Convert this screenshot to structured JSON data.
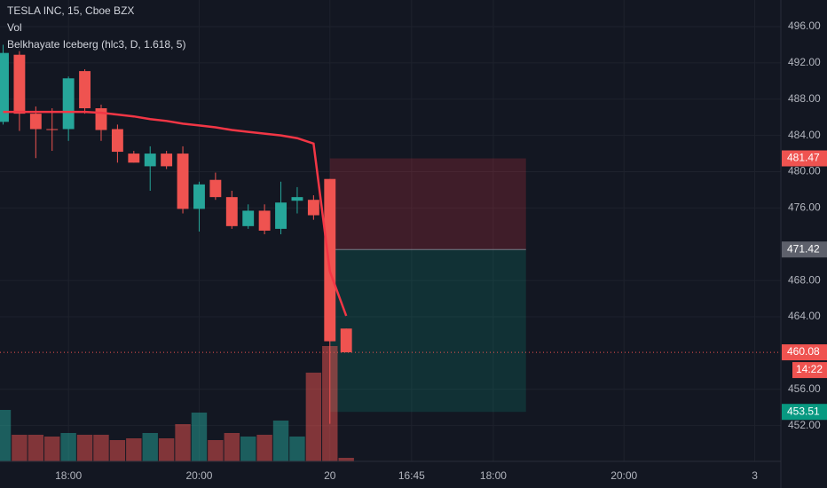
{
  "chart_data": {
    "type": "candlestick",
    "title": "TESLA INC, 15, Cboe BZX",
    "volume_name": "Vol",
    "up_color": "#26a69a",
    "down_color": "#ef5350",
    "open": [
      485.5,
      492.9,
      486.4,
      484.7,
      484.7,
      491.1,
      487.0,
      484.7,
      482.0,
      480.6,
      482.0,
      482.0,
      475.9,
      479.1,
      477.2,
      474.0,
      475.7,
      473.7,
      476.8,
      476.9,
      479.2,
      462.7
    ],
    "high": [
      494.0,
      493.3,
      487.2,
      487.0,
      490.5,
      491.3,
      487.4,
      485.2,
      482.3,
      482.8,
      482.3,
      482.8,
      478.9,
      479.9,
      477.9,
      476.4,
      476.4,
      478.9,
      478.3,
      477.4,
      479.2,
      462.7
    ],
    "low": [
      485.2,
      484.5,
      481.5,
      482.3,
      483.4,
      486.4,
      483.4,
      481.0,
      481.0,
      477.9,
      480.3,
      475.4,
      473.4,
      476.9,
      473.7,
      473.7,
      473.1,
      473.1,
      475.4,
      474.7,
      452.2,
      460.08
    ],
    "close": [
      493.1,
      486.4,
      484.7,
      484.6,
      490.3,
      487.0,
      484.6,
      482.2,
      481.0,
      482.0,
      480.6,
      475.9,
      478.6,
      477.2,
      474.0,
      475.7,
      473.5,
      476.6,
      477.2,
      475.2,
      461.3,
      460.08
    ],
    "volume": [
      58,
      30,
      30,
      28,
      32,
      30,
      30,
      24,
      26,
      32,
      26,
      42,
      55,
      24,
      32,
      28,
      30,
      46,
      28,
      100,
      130,
      4
    ],
    "iceberg": {
      "name": "Belkhayate Iceberg (hlc3, D, 1.618, 5)",
      "color": "#f23645",
      "values": [
        486.6,
        486.6,
        486.6,
        486.6,
        486.6,
        486.6,
        486.5,
        486.3,
        486.1,
        485.8,
        485.6,
        485.3,
        485.1,
        484.9,
        484.6,
        484.4,
        484.2,
        484.0,
        483.7,
        483.1,
        469.0,
        464.1
      ]
    },
    "position": {
      "entry": 471.42,
      "stop": 481.47,
      "target": 453.51,
      "from": 20,
      "to": 32
    },
    "last_price": 460.08,
    "countdown": "14:22",
    "xlim": [
      -0.19,
      47.6
    ],
    "xticks": [
      {
        "value": 4,
        "label": "18:00"
      },
      {
        "value": 12,
        "label": "20:00"
      },
      20,
      {
        "value": 25,
        "label": "16:45"
      },
      {
        "value": 30,
        "label": "18:00"
      },
      {
        "value": 38,
        "label": "20:00"
      },
      {
        "value": 46,
        "label": "3"
      }
    ],
    "ylim": [
      448.05,
      498.94
    ],
    "yticks": [
      {
        "value": 496,
        "label": "496.00"
      },
      {
        "value": 492,
        "label": "492.00"
      },
      {
        "value": 488,
        "label": "488.00"
      },
      {
        "value": 484,
        "label": "484.00"
      },
      {
        "value": 480,
        "label": "480.00"
      },
      {
        "value": 476,
        "label": "476.00"
      },
      {
        "value": 468,
        "label": "468.00"
      },
      {
        "value": 464,
        "label": "464.00"
      },
      {
        "value": 456,
        "label": "456.00"
      },
      {
        "value": 452,
        "label": "452.00"
      }
    ],
    "grid": true
  }
}
